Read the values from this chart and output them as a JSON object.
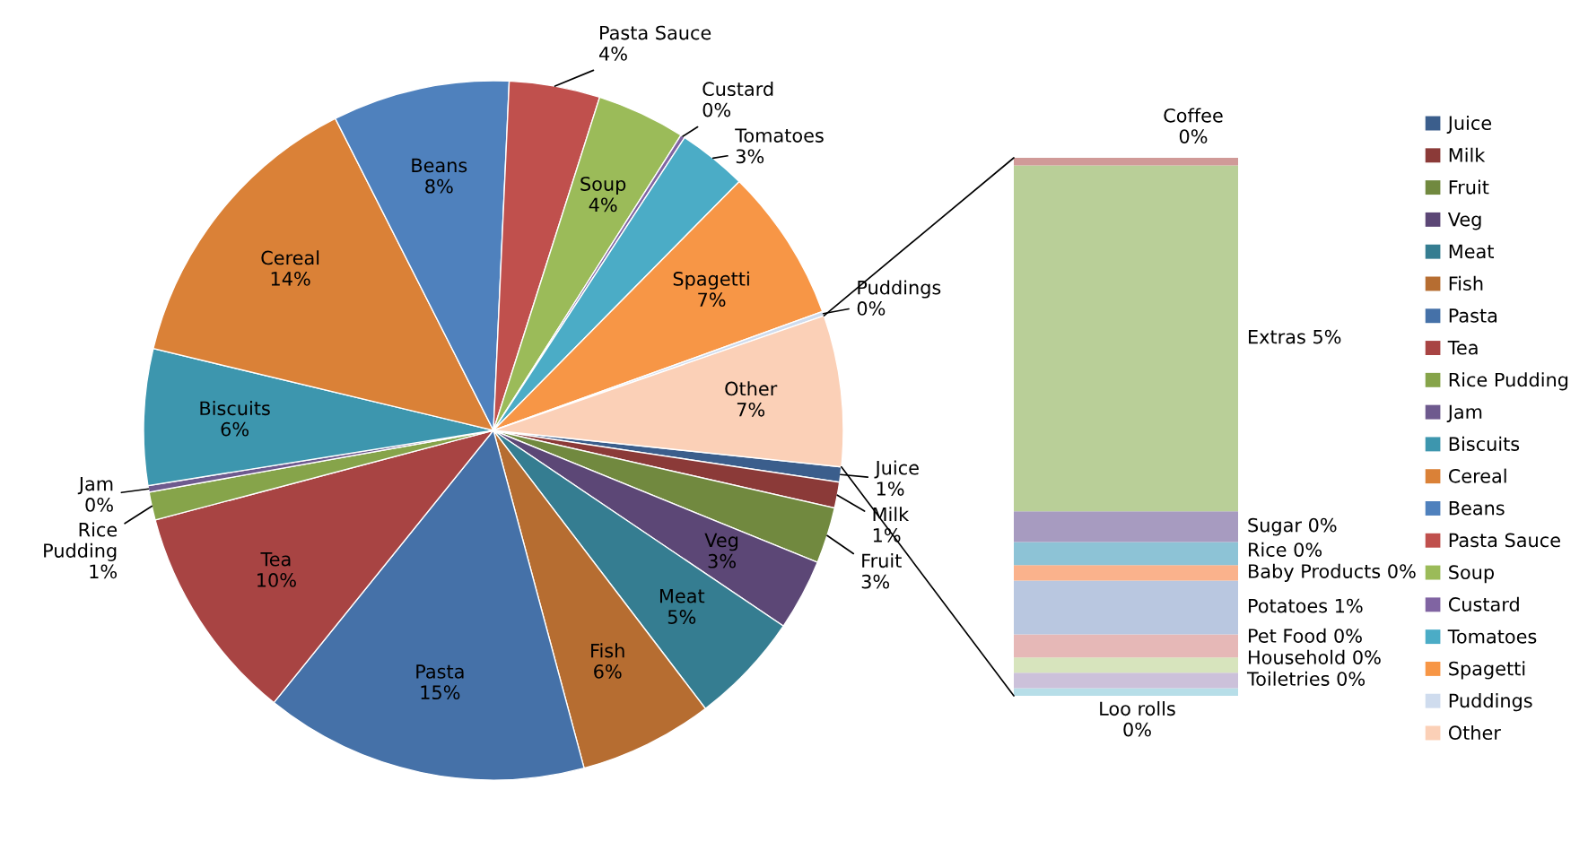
{
  "chart_data": [
    {
      "type": "pie",
      "categories": [
        "Juice",
        "Milk",
        "Fruit",
        "Veg",
        "Meat",
        "Fish",
        "Pasta",
        "Tea",
        "Rice Pudding",
        "Jam",
        "Biscuits",
        "Cereal",
        "Beans",
        "Pasta Sauce",
        "Soup",
        "Custard",
        "Tomatoes",
        "Spagetti",
        "Puddings",
        "Other"
      ],
      "values": [
        0.7,
        1.2,
        2.6,
        3.3,
        5.2,
        6.2,
        15.0,
        10.1,
        1.3,
        0.3,
        6.3,
        13.8,
        8.2,
        4.2,
        4.1,
        0.2,
        3.2,
        7.1,
        0.2,
        7.0
      ],
      "value_labels": [
        "1%",
        "1%",
        "3%",
        "3%",
        "5%",
        "6%",
        "15%",
        "10%",
        "1%",
        "0%",
        "6%",
        "14%",
        "8%",
        "4%",
        "4%",
        "0%",
        "3%",
        "7%",
        "0%",
        "7%"
      ],
      "colors": [
        "#3b5e8c",
        "#8b3a38",
        "#71893f",
        "#5c4776",
        "#357d91",
        "#b66d31",
        "#4571a8",
        "#a84443",
        "#86a44a",
        "#6e5a8e",
        "#3d96ae",
        "#da8137",
        "#4f81bd",
        "#c0504d",
        "#9bbb59",
        "#8064a2",
        "#4bacc6",
        "#f79646",
        "#cfdcee",
        "#fbd0b7"
      ],
      "legend": "right"
    },
    {
      "type": "bar",
      "stacked": true,
      "categories": [
        null
      ],
      "series": [
        {
          "name": "Loo rolls",
          "color": "#b7dee8",
          "values": [
            0.1
          ],
          "value_labels": [
            "0%"
          ]
        },
        {
          "name": "Toiletries",
          "color": "#ccc1da",
          "values": [
            0.2
          ],
          "value_labels": [
            "0%"
          ]
        },
        {
          "name": "Household",
          "color": "#d7e4bd",
          "values": [
            0.2
          ],
          "value_labels": [
            "0%"
          ]
        },
        {
          "name": "Pet Food",
          "color": "#e6b8b7",
          "values": [
            0.3
          ],
          "value_labels": [
            "0%"
          ]
        },
        {
          "name": "Potatoes",
          "color": "#b9c7e0",
          "values": [
            0.7
          ],
          "value_labels": [
            "1%"
          ]
        },
        {
          "name": "Baby Products",
          "color": "#fab28c",
          "values": [
            0.2
          ],
          "value_labels": [
            "0%"
          ]
        },
        {
          "name": "Rice",
          "color": "#8dc3d6",
          "values": [
            0.3
          ],
          "value_labels": [
            "0%"
          ]
        },
        {
          "name": "Sugar",
          "color": "#a79bc0",
          "values": [
            0.4
          ],
          "value_labels": [
            "0%"
          ]
        },
        {
          "name": "Extras",
          "color": "#b9cf98",
          "values": [
            4.5
          ],
          "value_labels": [
            "5%"
          ]
        },
        {
          "name": "Coffee",
          "color": "#d09a98",
          "values": [
            0.1
          ],
          "value_labels": [
            "0%"
          ]
        }
      ]
    }
  ]
}
